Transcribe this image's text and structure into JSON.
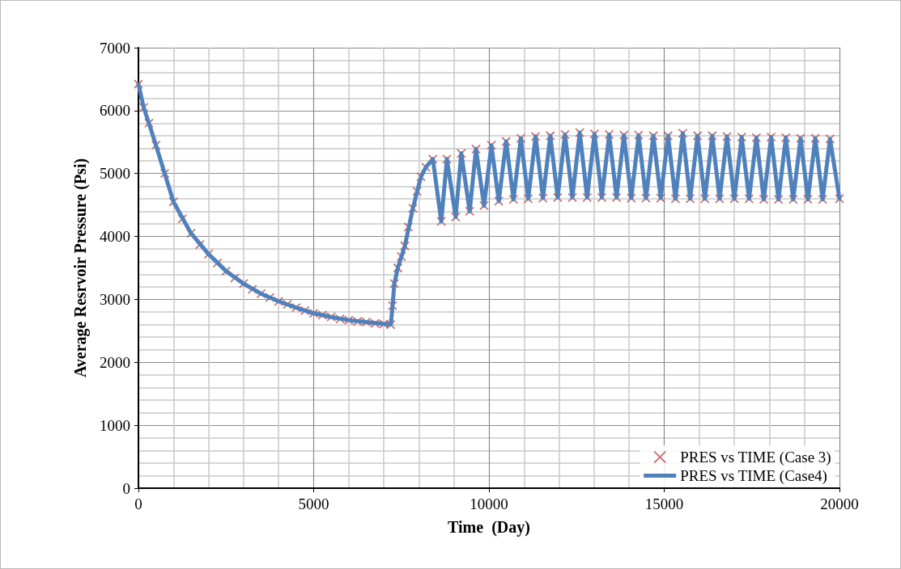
{
  "chart_data": {
    "type": "line",
    "xlabel": "Time  (Day)",
    "ylabel": "Average Resrvoir Pressure (Psi)",
    "xlim": [
      0,
      20000
    ],
    "xticks": [
      0,
      5000,
      10000,
      15000,
      20000
    ],
    "ylim": [
      0,
      7000
    ],
    "yticks": [
      0,
      1000,
      2000,
      3000,
      4000,
      5000,
      6000,
      7000
    ],
    "grid": true,
    "legend": "bottom right",
    "series": [
      {
        "name": "PRES vs TIME (Case 3)",
        "type": "scatter",
        "marker": "cross",
        "color": "#c0504d",
        "x": [
          0,
          150,
          300,
          500,
          750,
          1000,
          1250,
          1500,
          1750,
          2000,
          2250,
          2500,
          2750,
          3000,
          3250,
          3500,
          3750,
          4000,
          4250,
          4500,
          4750,
          5000,
          5250,
          5500,
          5750,
          6000,
          6250,
          6500,
          6750,
          7000,
          7200,
          7250,
          7300,
          7400,
          7500,
          7600,
          7700,
          7830,
          7950,
          8060,
          8200,
          8400,
          8640,
          8800,
          9050,
          9210,
          9450,
          9630,
          9860,
          10070,
          10280,
          10490,
          10700,
          10910,
          11120,
          11330,
          11540,
          11750,
          11960,
          12170,
          12380,
          12590,
          12800,
          13010,
          13220,
          13430,
          13640,
          13850,
          14060,
          14270,
          14480,
          14690,
          14900,
          15110,
          15320,
          15530,
          15740,
          15950,
          16160,
          16370,
          16580,
          16790,
          17000,
          17210,
          17420,
          17630,
          17840,
          18050,
          18260,
          18470,
          18680,
          18890,
          19100,
          19310,
          19520,
          19730,
          20000
        ],
        "values": [
          6420,
          6050,
          5800,
          5450,
          5000,
          4550,
          4280,
          4050,
          3870,
          3720,
          3580,
          3450,
          3340,
          3250,
          3160,
          3090,
          3030,
          2970,
          2920,
          2870,
          2820,
          2780,
          2750,
          2720,
          2690,
          2670,
          2650,
          2640,
          2620,
          2610,
          2600,
          2900,
          3250,
          3500,
          3680,
          3850,
          4150,
          4450,
          4720,
          4950,
          5100,
          5230,
          4240,
          5230,
          4310,
          5320,
          4400,
          5390,
          4490,
          5450,
          4560,
          5510,
          4590,
          5560,
          4600,
          5590,
          4610,
          5600,
          4620,
          5620,
          4620,
          5650,
          4620,
          5630,
          4620,
          5620,
          4620,
          5610,
          4610,
          5610,
          4610,
          5600,
          4610,
          5600,
          4600,
          5640,
          4600,
          5600,
          4600,
          5600,
          4600,
          5590,
          4600,
          5580,
          4600,
          5570,
          4590,
          5580,
          4590,
          5570,
          4590,
          5560,
          4590,
          5560,
          4590,
          5550,
          4600
        ]
      },
      {
        "name": "PRES vs TIME (Case4)",
        "marker": "none",
        "line_style": "solid",
        "color": "#4f81bd",
        "x": [
          0,
          150,
          300,
          500,
          750,
          1000,
          1500,
          2000,
          2500,
          3000,
          3500,
          4000,
          4500,
          5000,
          5500,
          6000,
          6500,
          7000,
          7200,
          7250,
          7300,
          7400,
          7600,
          7830,
          8060,
          8200,
          8400,
          8640,
          8800,
          9050,
          9210,
          9450,
          9630,
          9860,
          10070,
          10280,
          10490,
          10700,
          10910,
          11120,
          11330,
          11540,
          11750,
          11960,
          12170,
          12380,
          12590,
          12800,
          13010,
          13220,
          13430,
          13640,
          13850,
          14060,
          14270,
          14480,
          14690,
          14900,
          15110,
          15320,
          15530,
          15740,
          15950,
          16160,
          16370,
          16580,
          16790,
          17000,
          17210,
          17420,
          17630,
          17840,
          18050,
          18260,
          18470,
          18680,
          18890,
          19100,
          19310,
          19520,
          19730,
          20000
        ],
        "values": [
          6420,
          6050,
          5800,
          5450,
          5000,
          4550,
          4050,
          3720,
          3450,
          3250,
          3090,
          2970,
          2870,
          2780,
          2720,
          2670,
          2640,
          2610,
          2600,
          2900,
          3250,
          3500,
          3850,
          4450,
          4950,
          5100,
          5230,
          4240,
          5230,
          4310,
          5320,
          4400,
          5390,
          4490,
          5450,
          4560,
          5510,
          4590,
          5560,
          4600,
          5590,
          4610,
          5600,
          4620,
          5620,
          4620,
          5650,
          4620,
          5630,
          4620,
          5620,
          4620,
          5610,
          4610,
          5610,
          4610,
          5600,
          4610,
          5600,
          4600,
          5640,
          4600,
          5600,
          4600,
          5600,
          4600,
          5590,
          4600,
          5580,
          4600,
          5570,
          4590,
          5580,
          4590,
          5570,
          4590,
          5560,
          4590,
          5560,
          4590,
          5550,
          4600
        ]
      }
    ]
  }
}
